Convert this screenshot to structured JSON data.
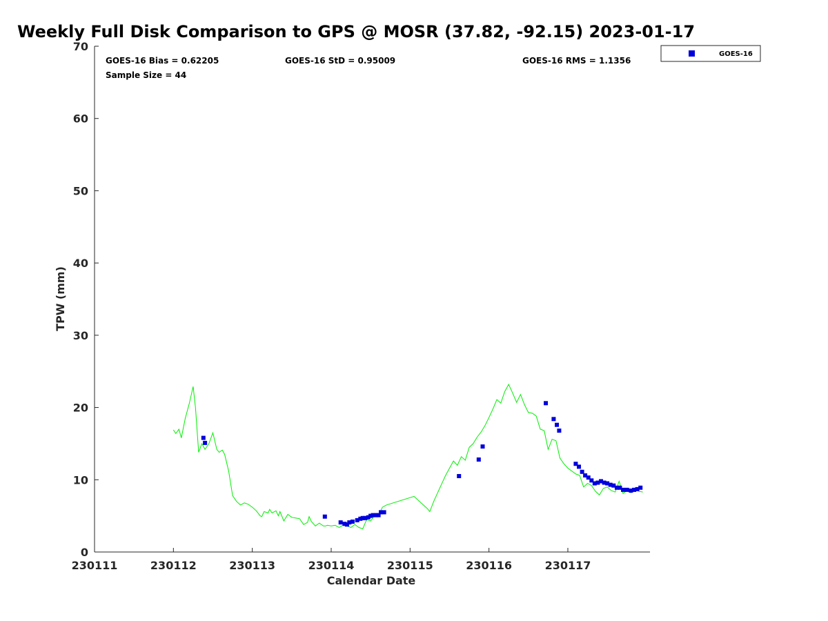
{
  "chart_data": {
    "type": "scatter",
    "title": "Weekly Full Disk Comparison to GPS @ MOSR (37.82, -92.15) 2023-01-17",
    "xlabel": "Calendar Date",
    "ylabel": "TPW (mm)",
    "xlim": [
      0,
      7
    ],
    "ylim": [
      0,
      70
    ],
    "x_tick_values": [
      0,
      1,
      2,
      3,
      4,
      5,
      6
    ],
    "x_tick_labels": [
      "230111",
      "230112",
      "230113",
      "230114",
      "230115",
      "230116",
      "230117"
    ],
    "y_tick_values": [
      0,
      10,
      20,
      30,
      40,
      50,
      60,
      70
    ],
    "y_tick_labels": [
      "0",
      "10",
      "20",
      "30",
      "40",
      "50",
      "60",
      "70"
    ],
    "legend_position": "top-right outside",
    "stats": {
      "bias": "GOES-16 Bias = 0.62205",
      "std": "GOES-16 StD = 0.95009",
      "rms": "GOES-16 RMS = 1.1356",
      "sample_size": "Sample Size = 44"
    },
    "series": [
      {
        "name": "GPS",
        "kind": "line",
        "color": "#00ee00",
        "x": [
          1.0,
          1.03,
          1.07,
          1.1,
          1.15,
          1.2,
          1.25,
          1.28,
          1.32,
          1.36,
          1.4,
          1.45,
          1.5,
          1.55,
          1.58,
          1.62,
          1.65,
          1.7,
          1.75,
          1.8,
          1.85,
          1.9,
          1.95,
          2.0,
          2.05,
          2.1,
          2.12,
          2.15,
          2.2,
          2.22,
          2.25,
          2.3,
          2.33,
          2.35,
          2.4,
          2.45,
          2.5,
          2.55,
          2.6,
          2.65,
          2.7,
          2.72,
          2.75,
          2.8,
          2.85,
          2.9,
          2.93,
          2.95,
          3.0,
          3.05,
          3.1,
          3.15,
          3.2,
          3.25,
          3.3,
          3.35,
          3.4,
          3.45,
          3.5,
          3.55,
          3.6,
          3.65,
          3.7,
          4.05,
          4.22,
          4.25,
          4.3,
          4.35,
          4.4,
          4.45,
          4.5,
          4.55,
          4.6,
          4.65,
          4.7,
          4.75,
          4.8,
          4.85,
          4.9,
          4.95,
          5.0,
          5.05,
          5.1,
          5.15,
          5.2,
          5.25,
          5.3,
          5.35,
          5.4,
          5.45,
          5.5,
          5.55,
          5.6,
          5.65,
          5.7,
          5.75,
          5.8,
          5.85,
          5.9,
          5.95,
          6.0,
          6.05,
          6.1,
          6.15,
          6.2,
          6.25,
          6.3,
          6.35,
          6.4,
          6.45,
          6.5,
          6.55,
          6.6,
          6.65,
          6.7,
          6.75,
          6.8,
          6.85,
          6.9,
          6.95
        ],
        "values": [
          16.9,
          16.4,
          17.0,
          15.8,
          18.5,
          20.5,
          22.9,
          20.0,
          13.8,
          15.0,
          14.2,
          15.0,
          16.5,
          14.2,
          13.8,
          14.1,
          13.5,
          11.2,
          7.8,
          7.0,
          6.5,
          6.8,
          6.6,
          6.2,
          5.7,
          5.0,
          4.9,
          5.6,
          5.4,
          5.9,
          5.4,
          5.7,
          5.0,
          5.6,
          4.3,
          5.2,
          4.8,
          4.7,
          4.6,
          3.8,
          4.1,
          4.9,
          4.2,
          3.6,
          4.0,
          3.6,
          3.6,
          3.7,
          3.6,
          3.7,
          3.4,
          3.7,
          3.6,
          3.4,
          3.8,
          3.4,
          3.2,
          4.5,
          4.3,
          5.0,
          5.1,
          6.2,
          6.5,
          7.7,
          6.0,
          5.6,
          7.0,
          8.2,
          9.4,
          10.6,
          11.6,
          12.6,
          12.0,
          13.2,
          12.7,
          14.5,
          15.0,
          15.9,
          16.6,
          17.5,
          18.6,
          19.8,
          21.1,
          20.6,
          22.2,
          23.2,
          22.0,
          20.7,
          21.8,
          20.4,
          19.3,
          19.2,
          18.8,
          17.0,
          16.8,
          14.2,
          15.6,
          15.4,
          13.0,
          12.2,
          11.6,
          11.2,
          10.8,
          10.6,
          9.0,
          9.5,
          9.2,
          8.4,
          7.9,
          8.8,
          9.0,
          8.5,
          8.3,
          9.8,
          8.1,
          8.5,
          8.2,
          8.7,
          8.4,
          8.3
        ]
      },
      {
        "name": "GOES-16",
        "kind": "scatter",
        "color": "#0000dd",
        "x": [
          1.38,
          1.4,
          2.92,
          3.12,
          3.17,
          3.2,
          3.23,
          3.27,
          3.33,
          3.37,
          3.4,
          3.43,
          3.47,
          3.5,
          3.53,
          3.57,
          3.6,
          3.63,
          3.67,
          4.62,
          4.87,
          4.92,
          5.72,
          5.82,
          5.86,
          5.89,
          6.1,
          6.14,
          6.18,
          6.22,
          6.26,
          6.3,
          6.34,
          6.38,
          6.42,
          6.46,
          6.5,
          6.54,
          6.58,
          6.62,
          6.66,
          6.7,
          6.75,
          6.8,
          6.84,
          6.88,
          6.92
        ],
        "values": [
          15.8,
          15.1,
          4.9,
          4.1,
          3.9,
          3.8,
          4.1,
          4.2,
          4.4,
          4.6,
          4.7,
          4.7,
          4.8,
          5.0,
          5.1,
          5.1,
          5.1,
          5.5,
          5.5,
          10.5,
          12.8,
          14.6,
          20.6,
          18.4,
          17.6,
          16.8,
          12.2,
          11.8,
          11.1,
          10.6,
          10.3,
          9.9,
          9.5,
          9.6,
          9.8,
          9.6,
          9.5,
          9.3,
          9.2,
          8.9,
          8.9,
          8.6,
          8.6,
          8.5,
          8.6,
          8.7,
          8.9
        ]
      }
    ],
    "legend": {
      "label": "GOES-16"
    }
  }
}
